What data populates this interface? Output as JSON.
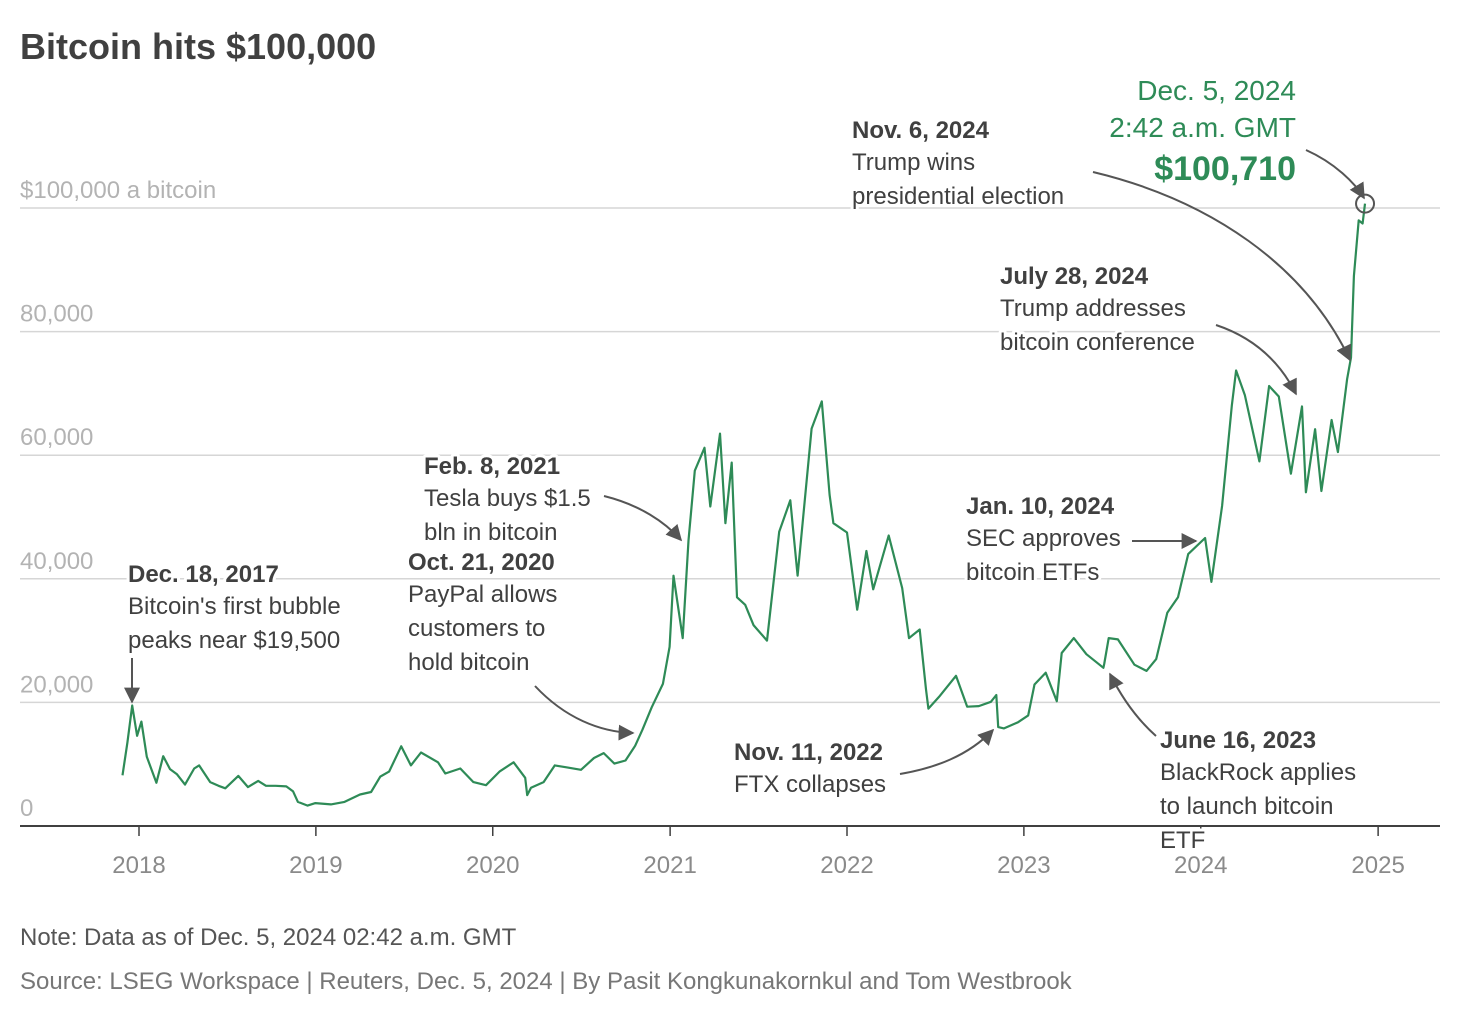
{
  "title": "Bitcoin hits $100,000",
  "note": "Note: Data as of Dec. 5, 2024 02:42 a.m. GMT",
  "source": "Source: LSEG Workspace | Reuters, Dec. 5, 2024 | By Pasit Kongkunakornkul and Tom Westbrook",
  "colors": {
    "line": "#2e8b57",
    "grid": "#d6d6d6",
    "axis": "#404040",
    "arrow": "#555555",
    "text": "#404040"
  },
  "chart_data": {
    "type": "line",
    "title": "Bitcoin hits $100,000",
    "xlabel": "",
    "ylabel": "",
    "ylim": [
      0,
      100000
    ],
    "xlim": [
      "2017-10-01",
      "2025-03-15"
    ],
    "grid": true,
    "y_tick_labels": [
      "0",
      "20,000",
      "40,000",
      "60,000",
      "80,000",
      "$100,000 a bitcoin"
    ],
    "y_tick_values": [
      0,
      20000,
      40000,
      60000,
      80000,
      100000
    ],
    "x_tick_labels": [
      "2018",
      "2019",
      "2020",
      "2021",
      "2022",
      "2023",
      "2024",
      "2025"
    ],
    "x_tick_values": [
      "2018-01-01",
      "2019-01-01",
      "2020-01-01",
      "2021-01-01",
      "2022-01-01",
      "2023-01-01",
      "2024-01-01",
      "2025-01-01"
    ],
    "series": [
      {
        "x": [
          "2017-11-28",
          "2017-12-08",
          "2017-12-18",
          "2017-12-28",
          "2018-01-06",
          "2018-01-17",
          "2018-02-06",
          "2018-02-20",
          "2018-03-06",
          "2018-03-20",
          "2018-04-06",
          "2018-04-25",
          "2018-05-05",
          "2018-05-28",
          "2018-06-14",
          "2018-06-28",
          "2018-07-25",
          "2018-08-14",
          "2018-09-04",
          "2018-09-20",
          "2018-10-10",
          "2018-11-01",
          "2018-11-15",
          "2018-11-25",
          "2018-12-15",
          "2018-12-31",
          "2019-02-01",
          "2019-03-01",
          "2019-04-02",
          "2019-04-25",
          "2019-05-14",
          "2019-06-01",
          "2019-06-26",
          "2019-07-16",
          "2019-08-06",
          "2019-09-10",
          "2019-09-25",
          "2019-10-26",
          "2019-11-22",
          "2019-12-18",
          "2020-01-15",
          "2020-02-13",
          "2020-03-08",
          "2020-03-12",
          "2020-03-20",
          "2020-04-15",
          "2020-05-08",
          "2020-06-01",
          "2020-07-01",
          "2020-07-28",
          "2020-08-17",
          "2020-09-08",
          "2020-10-01",
          "2020-10-21",
          "2020-11-05",
          "2020-11-24",
          "2020-12-17",
          "2020-12-31",
          "2021-01-08",
          "2021-01-27",
          "2021-02-08",
          "2021-02-21",
          "2021-03-13",
          "2021-03-25",
          "2021-04-14",
          "2021-04-25",
          "2021-05-08",
          "2021-05-19",
          "2021-06-05",
          "2021-06-22",
          "2021-07-20",
          "2021-08-14",
          "2021-09-06",
          "2021-09-21",
          "2021-10-20",
          "2021-11-10",
          "2021-11-26",
          "2021-12-04",
          "2022-01-01",
          "2022-01-22",
          "2022-02-10",
          "2022-02-24",
          "2022-03-28",
          "2022-04-25",
          "2022-05-09",
          "2022-05-31",
          "2022-06-13",
          "2022-06-18",
          "2022-07-10",
          "2022-08-14",
          "2022-09-06",
          "2022-09-30",
          "2022-10-25",
          "2022-11-05",
          "2022-11-09",
          "2022-11-21",
          "2022-12-20",
          "2023-01-10",
          "2023-01-23",
          "2023-02-15",
          "2023-03-10",
          "2023-03-20",
          "2023-04-14",
          "2023-05-10",
          "2023-06-14",
          "2023-06-16",
          "2023-06-25",
          "2023-07-14",
          "2023-08-17",
          "2023-09-11",
          "2023-10-01",
          "2023-10-24",
          "2023-11-15",
          "2023-12-06",
          "2024-01-10",
          "2024-01-23",
          "2024-02-14",
          "2024-03-05",
          "2024-03-14",
          "2024-04-01",
          "2024-05-01",
          "2024-05-21",
          "2024-06-10",
          "2024-07-05",
          "2024-07-28",
          "2024-08-05",
          "2024-08-24",
          "2024-09-06",
          "2024-09-27",
          "2024-10-10",
          "2024-10-29",
          "2024-11-06",
          "2024-11-12",
          "2024-11-22",
          "2024-11-30",
          "2024-12-05"
        ],
        "values": [
          8200,
          13500,
          19500,
          14600,
          16900,
          11200,
          7000,
          11300,
          9200,
          8400,
          6700,
          9300,
          9800,
          7100,
          6500,
          6100,
          8100,
          6300,
          7300,
          6500,
          6500,
          6400,
          5600,
          3900,
          3300,
          3700,
          3500,
          3900,
          5100,
          5500,
          8000,
          8800,
          12900,
          9800,
          11900,
          10300,
          8500,
          9300,
          7100,
          6600,
          8800,
          10300,
          7800,
          5000,
          6200,
          7100,
          9800,
          9500,
          9100,
          11000,
          11800,
          10100,
          10600,
          13000,
          15600,
          19200,
          23000,
          29000,
          40500,
          30400,
          46200,
          57500,
          61200,
          51700,
          63500,
          49000,
          58800,
          37000,
          35800,
          32500,
          30000,
          47600,
          52700,
          40500,
          64300,
          68700,
          53600,
          49000,
          47500,
          35000,
          44500,
          38300,
          47000,
          38500,
          30400,
          31800,
          22100,
          19000,
          20900,
          24300,
          19300,
          19400,
          20100,
          21200,
          16000,
          15800,
          16800,
          17900,
          22900,
          24800,
          20200,
          28000,
          30400,
          27800,
          25600,
          26300,
          30400,
          30200,
          26100,
          25100,
          27000,
          34500,
          37000,
          44000,
          46600,
          39500,
          51800,
          68000,
          73700,
          69700,
          59000,
          71200,
          69500,
          57000,
          67900,
          54000,
          64200,
          54200,
          65700,
          60500,
          72300,
          75800,
          89000,
          98000,
          97500,
          100710
        ]
      }
    ],
    "annotations": [
      {
        "date": "Dec. 18, 2017",
        "lines": [
          "Bitcoin's first bubble",
          "peaks near $19,500"
        ]
      },
      {
        "date": "Oct. 21, 2020",
        "lines": [
          "PayPal allows",
          "customers to",
          "hold bitcoin"
        ]
      },
      {
        "date": "Feb. 8, 2021",
        "lines": [
          "Tesla buys $1.5",
          "bln in bitcoin"
        ]
      },
      {
        "date": "Nov. 11, 2022",
        "lines": [
          "FTX collapses"
        ]
      },
      {
        "date": "June 16, 2023",
        "lines": [
          "BlackRock applies",
          "to launch bitcoin",
          "ETF"
        ]
      },
      {
        "date": "Jan. 10, 2024",
        "lines": [
          "SEC approves",
          "bitcoin ETFs"
        ]
      },
      {
        "date": "July 28, 2024",
        "lines": [
          "Trump addresses",
          "bitcoin conference"
        ]
      },
      {
        "date": "Nov. 6, 2024",
        "lines": [
          "Trump wins",
          "presidential election"
        ]
      }
    ],
    "highlight": {
      "date": "Dec. 5, 2024",
      "time": "2:42 a.m. GMT",
      "value": "$100,710"
    }
  }
}
